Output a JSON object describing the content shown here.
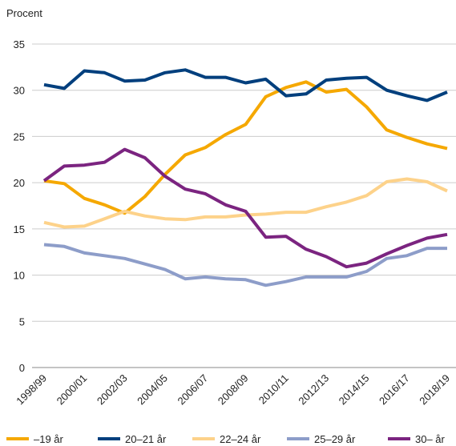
{
  "chart_data": {
    "type": "line",
    "y_label": "Procent",
    "categories": [
      "1998/99",
      null,
      "2000/01",
      null,
      "2002/03",
      null,
      "2004/05",
      null,
      "2006/07",
      null,
      "2008/09",
      null,
      "2010/11",
      null,
      "2012/13",
      null,
      "2014/15",
      null,
      "2016/17",
      null,
      "2018/19"
    ],
    "series": [
      {
        "name": "–19 år",
        "color": "#f5a800",
        "values": [
          20.2,
          19.9,
          18.3,
          17.6,
          16.7,
          18.5,
          20.9,
          23.0,
          23.8,
          25.2,
          26.3,
          29.3,
          30.3,
          30.9,
          29.8,
          30.1,
          28.2,
          25.7,
          24.9,
          24.2,
          23.7
        ]
      },
      {
        "name": "20–21 år",
        "color": "#003f7d",
        "values": [
          30.6,
          30.2,
          32.1,
          31.9,
          31.0,
          31.1,
          31.9,
          32.2,
          31.4,
          31.4,
          30.8,
          31.2,
          29.4,
          29.6,
          31.1,
          31.3,
          31.4,
          30.0,
          29.4,
          28.9,
          29.8
        ]
      },
      {
        "name": "22–24 år",
        "color": "#fdd28a",
        "values": [
          15.7,
          15.2,
          15.3,
          16.1,
          16.9,
          16.4,
          16.1,
          16.0,
          16.3,
          16.3,
          16.5,
          16.6,
          16.8,
          16.8,
          17.4,
          17.9,
          18.6,
          20.1,
          20.4,
          20.1,
          19.1
        ]
      },
      {
        "name": "25–29 år",
        "color": "#8d9dc9",
        "values": [
          13.3,
          13.1,
          12.4,
          12.1,
          11.8,
          11.2,
          10.6,
          9.6,
          9.8,
          9.6,
          9.5,
          8.9,
          9.3,
          9.8,
          9.8,
          9.8,
          10.4,
          11.8,
          12.1,
          12.9,
          12.9
        ]
      },
      {
        "name": "30– år",
        "color": "#7b2480",
        "values": [
          20.2,
          21.8,
          21.9,
          22.2,
          23.6,
          22.7,
          20.7,
          19.3,
          18.8,
          17.6,
          16.9,
          14.1,
          14.2,
          12.8,
          12.0,
          10.9,
          11.3,
          12.3,
          13.2,
          14.0,
          14.4
        ]
      }
    ],
    "ylim": [
      0,
      35
    ],
    "yticks": [
      0,
      5,
      10,
      15,
      20,
      25,
      30,
      35
    ],
    "grid": true,
    "legend": "bottom"
  }
}
